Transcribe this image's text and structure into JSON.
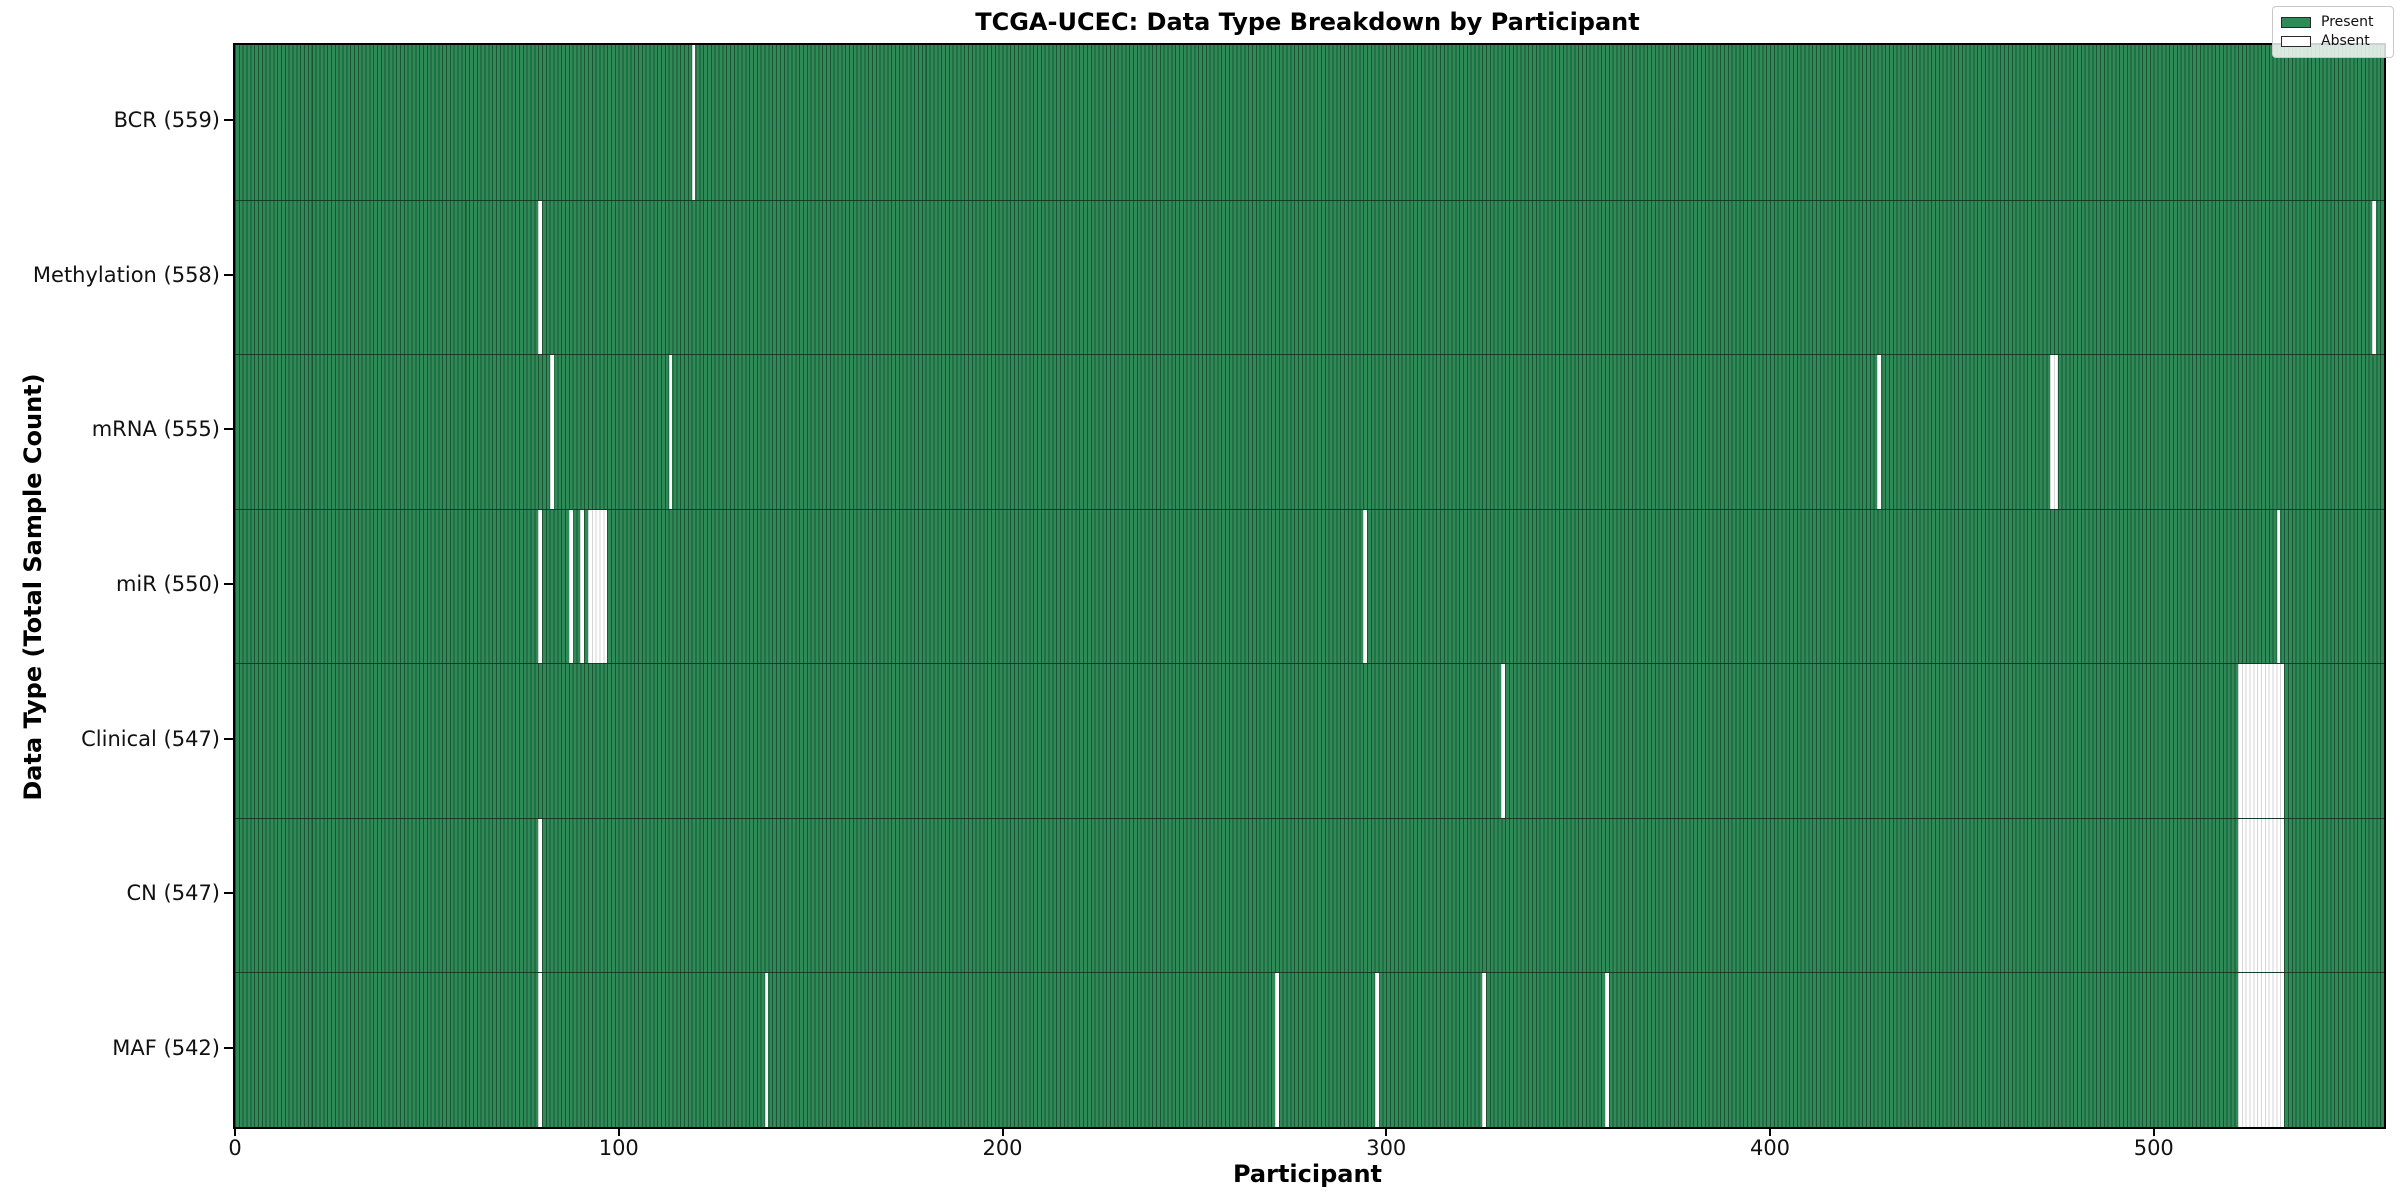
{
  "title": "TCGA-UCEC: Data Type Breakdown by Participant",
  "chart_data": {
    "type": "heatmap",
    "title": "TCGA-UCEC: Data Type Breakdown by Participant",
    "xlabel": "Participant",
    "ylabel": "Data Type (Total Sample Count)",
    "n_participants": 560,
    "xlim": [
      0,
      560
    ],
    "x_ticks": [
      0,
      100,
      200,
      300,
      400,
      500
    ],
    "grid": false,
    "legend_position": "upper right",
    "legend": [
      {
        "label": "Present",
        "color": "#2e8b57"
      },
      {
        "label": "Absent",
        "color": "#ffffff"
      }
    ],
    "colors": {
      "present": "#2e8b57",
      "absent": "#ffffff",
      "bar_edge_on_green": "rgba(0,0,0,0.40)",
      "bar_edge_on_white": "rgba(0,0,0,0.16)",
      "row_separator": "rgba(15,40,25,0.75)",
      "spine": "#000000"
    },
    "rows": [
      {
        "label": "BCR (559)",
        "name": "BCR",
        "total": 559,
        "absent": [
          119
        ]
      },
      {
        "label": "Methylation (558)",
        "name": "Methylation",
        "total": 558,
        "absent": [
          79,
          557
        ]
      },
      {
        "label": "mRNA (555)",
        "name": "mRNA",
        "total": 555,
        "absent": [
          82,
          113,
          428,
          473,
          474
        ]
      },
      {
        "label": "miR (550)",
        "name": "miR",
        "total": 550,
        "absent": [
          79,
          87,
          90,
          92,
          93,
          94,
          95,
          96,
          294,
          532
        ]
      },
      {
        "label": "Clinical (547)",
        "name": "Clinical",
        "total": 547,
        "absent": [
          330,
          522,
          523,
          524,
          525,
          526,
          527,
          528,
          529,
          530,
          531,
          532,
          533
        ]
      },
      {
        "label": "CN (547)",
        "name": "CN",
        "total": 547,
        "absent": [
          79,
          522,
          523,
          524,
          525,
          526,
          527,
          528,
          529,
          530,
          531,
          532,
          533
        ]
      },
      {
        "label": "MAF (542)",
        "name": "MAF",
        "total": 542,
        "absent": [
          79,
          138,
          271,
          297,
          325,
          357,
          522,
          523,
          524,
          525,
          526,
          527,
          528,
          529,
          530,
          531,
          532,
          533
        ]
      }
    ]
  }
}
